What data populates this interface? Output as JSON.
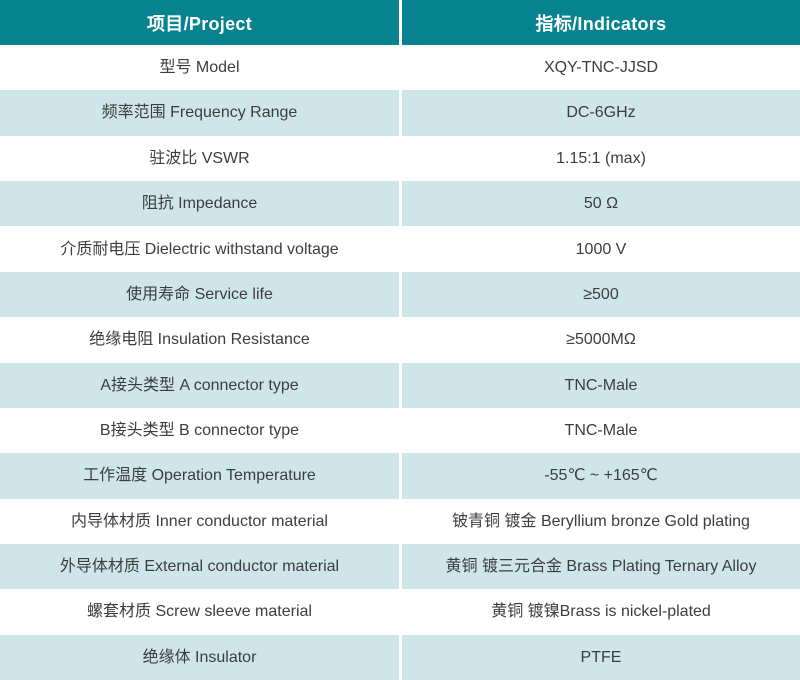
{
  "colors": {
    "header_bg": "#07828f",
    "header_text": "#ffffff",
    "row_bg": "#ffffff",
    "row_alt_bg": "#cee6ea",
    "body_text": "#3d3d3d",
    "divider": "#ffffff"
  },
  "table": {
    "header": {
      "project": "项目/Project",
      "indicators": "指标/Indicators"
    },
    "rows": [
      {
        "label": "型号 Model",
        "value": "XQY-TNC-JJSD"
      },
      {
        "label": "频率范围 Frequency Range",
        "value": "DC-6GHz"
      },
      {
        "label": "驻波比 VSWR",
        "value": "1.15:1 (max)"
      },
      {
        "label": "阻抗 Impedance",
        "value": "50 Ω"
      },
      {
        "label": "介质耐电压 Dielectric withstand voltage",
        "value": "1000 V"
      },
      {
        "label": "使用寿命 Service life",
        "value": "≥500"
      },
      {
        "label": "绝缘电阻 Insulation Resistance",
        "value": "≥5000MΩ"
      },
      {
        "label": "A接头类型 A connector type",
        "value": "TNC-Male"
      },
      {
        "label": "B接头类型 B connector type",
        "value": "TNC-Male"
      },
      {
        "label": "工作温度 Operation Temperature",
        "value": "-55℃ ~ +165℃"
      },
      {
        "label": "内导体材质 Inner conductor material",
        "value": "铍青铜 镀金 Beryllium bronze Gold plating"
      },
      {
        "label": "外导体材质 External conductor material",
        "value": "黄铜 镀三元合金 Brass Plating Ternary Alloy"
      },
      {
        "label": "螺套材质 Screw sleeve material",
        "value": "黄铜 镀镍Brass is nickel-plated"
      },
      {
        "label": "绝缘体 Insulator",
        "value": "PTFE"
      }
    ]
  }
}
